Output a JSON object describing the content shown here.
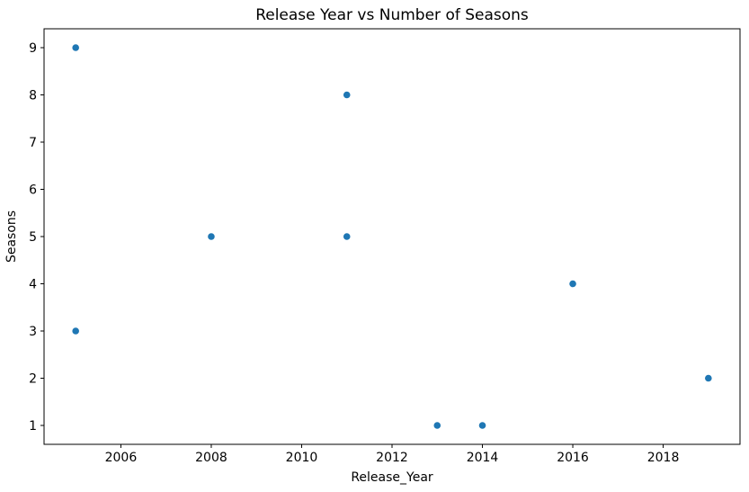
{
  "chart_data": {
    "type": "scatter",
    "title": "Release Year vs Number of Seasons",
    "xlabel": "Release_Year",
    "ylabel": "Seasons",
    "points": [
      {
        "x": 2005,
        "y": 9
      },
      {
        "x": 2011,
        "y": 8
      },
      {
        "x": 2008,
        "y": 5
      },
      {
        "x": 2011,
        "y": 5
      },
      {
        "x": 2016,
        "y": 4
      },
      {
        "x": 2005,
        "y": 3
      },
      {
        "x": 2019,
        "y": 2
      },
      {
        "x": 2013,
        "y": 1
      },
      {
        "x": 2014,
        "y": 1
      }
    ],
    "xticks": [
      2006,
      2008,
      2010,
      2012,
      2014,
      2016,
      2018
    ],
    "yticks": [
      1,
      2,
      3,
      4,
      5,
      6,
      7,
      8,
      9
    ],
    "xlim": [
      2004.3,
      2019.7
    ],
    "ylim": [
      0.6,
      9.4
    ],
    "marker_color": "#1f77b4",
    "grid": false,
    "legend": "none"
  }
}
